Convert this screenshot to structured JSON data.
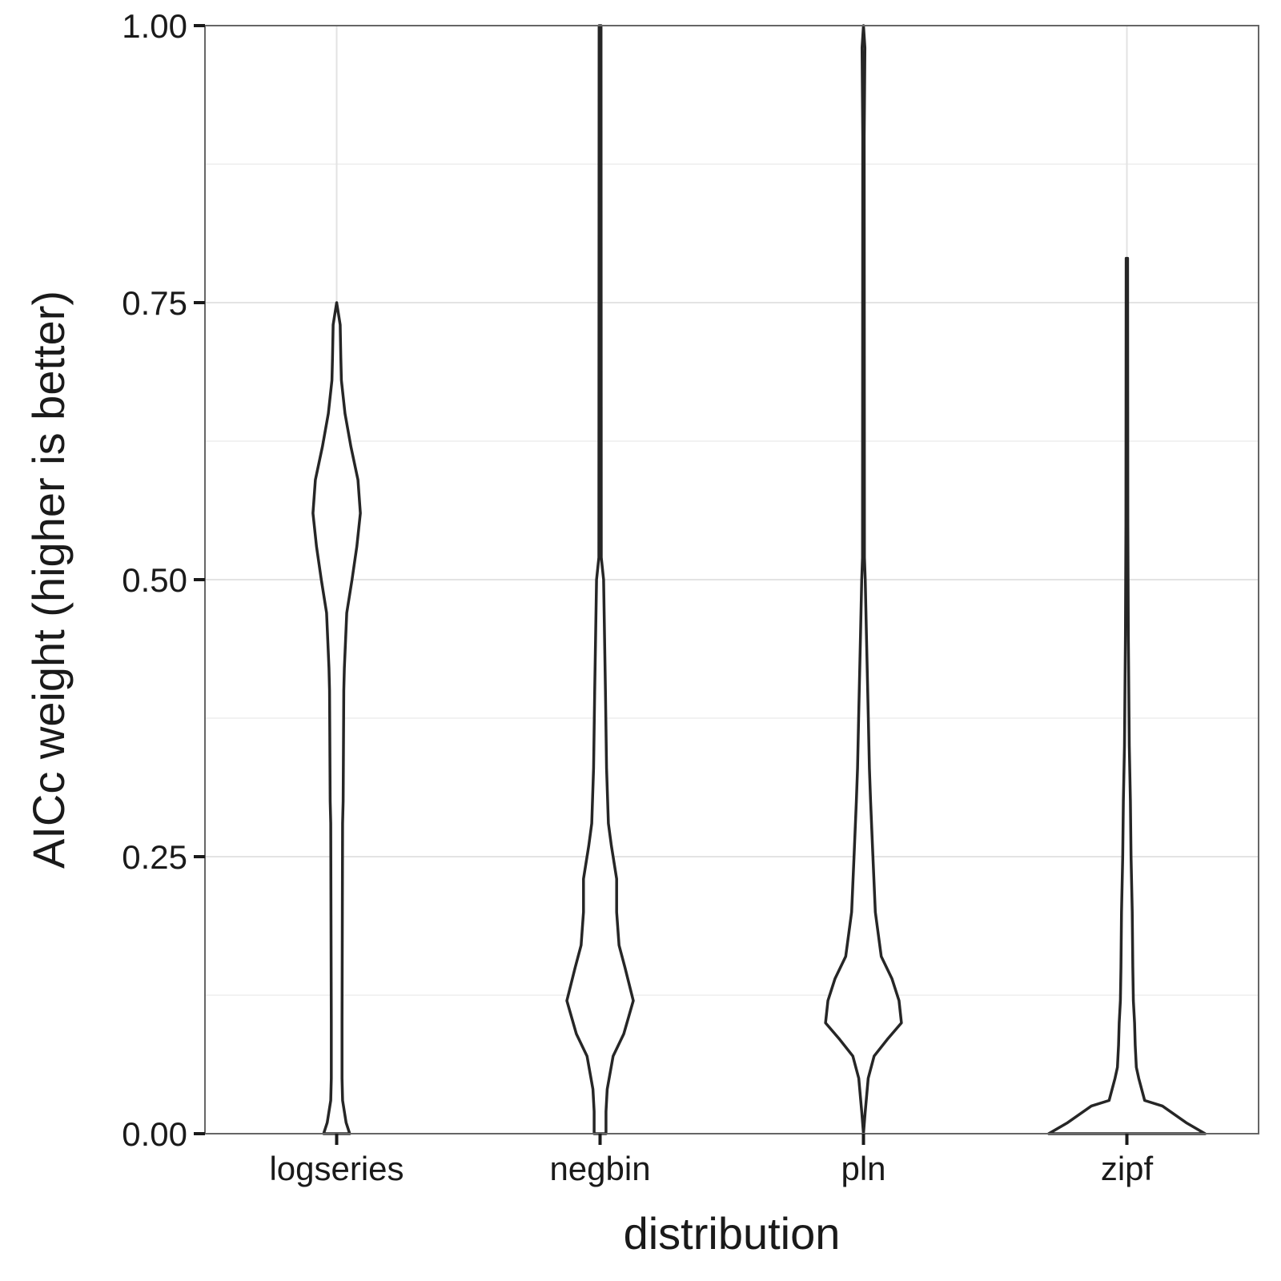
{
  "chart_data": {
    "type": "violin",
    "title": "",
    "xlabel": "distribution",
    "ylabel": "AICc weight (higher is better)",
    "categories": [
      "logseries",
      "negbin",
      "pln",
      "zipf"
    ],
    "ylim": [
      0,
      1
    ],
    "yticks": [
      0.0,
      0.25,
      0.5,
      0.75,
      1.0
    ],
    "ytick_labels": [
      "0.00",
      "0.25",
      "0.50",
      "0.75",
      "1.00"
    ],
    "grid": true,
    "legend": "none",
    "outline_color": "#262626",
    "fill_color": "#ffffff",
    "series": [
      {
        "category": "logseries",
        "range": [
          0.0,
          0.75
        ],
        "density_profile": [
          [
            0.0,
            0.11
          ],
          [
            0.01,
            0.08
          ],
          [
            0.03,
            0.05
          ],
          [
            0.05,
            0.045
          ],
          [
            0.1,
            0.045
          ],
          [
            0.2,
            0.048
          ],
          [
            0.28,
            0.05
          ],
          [
            0.3,
            0.055
          ],
          [
            0.4,
            0.06
          ],
          [
            0.42,
            0.065
          ],
          [
            0.47,
            0.085
          ],
          [
            0.5,
            0.13
          ],
          [
            0.53,
            0.17
          ],
          [
            0.56,
            0.2
          ],
          [
            0.59,
            0.18
          ],
          [
            0.62,
            0.12
          ],
          [
            0.65,
            0.07
          ],
          [
            0.68,
            0.04
          ],
          [
            0.7,
            0.035
          ],
          [
            0.73,
            0.03
          ],
          [
            0.75,
            0.0
          ]
        ]
      },
      {
        "category": "negbin",
        "range": [
          0.0,
          1.0
        ],
        "density_profile": [
          [
            0.0,
            0.05
          ],
          [
            0.02,
            0.05
          ],
          [
            0.04,
            0.06
          ],
          [
            0.07,
            0.11
          ],
          [
            0.09,
            0.2
          ],
          [
            0.12,
            0.28
          ],
          [
            0.15,
            0.21
          ],
          [
            0.17,
            0.16
          ],
          [
            0.2,
            0.14
          ],
          [
            0.23,
            0.14
          ],
          [
            0.26,
            0.095
          ],
          [
            0.28,
            0.07
          ],
          [
            0.33,
            0.055
          ],
          [
            0.4,
            0.045
          ],
          [
            0.5,
            0.03
          ],
          [
            0.52,
            0.01
          ],
          [
            1.0,
            0.008
          ]
        ]
      },
      {
        "category": "pln",
        "range": [
          0.0,
          1.0
        ],
        "density_profile": [
          [
            0.0,
            0.0
          ],
          [
            0.02,
            0.015
          ],
          [
            0.05,
            0.04
          ],
          [
            0.07,
            0.09
          ],
          [
            0.085,
            0.2
          ],
          [
            0.1,
            0.32
          ],
          [
            0.12,
            0.3
          ],
          [
            0.14,
            0.24
          ],
          [
            0.16,
            0.15
          ],
          [
            0.2,
            0.1
          ],
          [
            0.25,
            0.08
          ],
          [
            0.3,
            0.06
          ],
          [
            0.33,
            0.05
          ],
          [
            0.38,
            0.04
          ],
          [
            0.45,
            0.025
          ],
          [
            0.5,
            0.015
          ],
          [
            0.52,
            0.008
          ],
          [
            0.9,
            0.006
          ],
          [
            0.98,
            0.012
          ],
          [
            1.0,
            0.0
          ]
        ]
      },
      {
        "category": "zipf",
        "range": [
          0.0,
          0.79
        ],
        "density_profile": [
          [
            0.0,
            0.66
          ],
          [
            0.01,
            0.5
          ],
          [
            0.025,
            0.3
          ],
          [
            0.03,
            0.15
          ],
          [
            0.05,
            0.1
          ],
          [
            0.06,
            0.08
          ],
          [
            0.08,
            0.07
          ],
          [
            0.1,
            0.065
          ],
          [
            0.12,
            0.055
          ],
          [
            0.15,
            0.05
          ],
          [
            0.2,
            0.045
          ],
          [
            0.25,
            0.035
          ],
          [
            0.3,
            0.03
          ],
          [
            0.35,
            0.02
          ],
          [
            0.45,
            0.012
          ],
          [
            0.55,
            0.008
          ],
          [
            0.79,
            0.006
          ]
        ]
      }
    ]
  }
}
